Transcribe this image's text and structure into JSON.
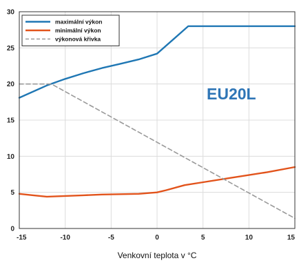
{
  "chart_data": {
    "type": "line",
    "title": "",
    "xlabel": "Venkovní teplota v °C",
    "ylabel": "",
    "xlim": [
      -15,
      15
    ],
    "ylim": [
      0,
      30
    ],
    "xticks": [
      -15,
      -10,
      -5,
      0,
      5,
      10,
      15
    ],
    "yticks": [
      0,
      5,
      10,
      15,
      20,
      25,
      30
    ],
    "xtick_labels": [
      "-15",
      "-10",
      "-5",
      "0",
      "5",
      "10",
      "15"
    ],
    "ytick_labels": [
      "0",
      "5",
      "10",
      "15",
      "20",
      "25",
      "30"
    ],
    "grid": true,
    "legend_position": "top-left",
    "annotation": "EU20L",
    "annotation_color": "#2e75b6",
    "series": [
      {
        "name": "maximální výkon",
        "color": "#1f77b4",
        "style": "solid",
        "x": [
          -15,
          -12,
          -10,
          -8,
          -6,
          -4,
          -2,
          0,
          3.4,
          15
        ],
        "y": [
          18.1,
          19.8,
          20.7,
          21.5,
          22.2,
          22.8,
          23.4,
          24.2,
          28.0,
          28.0
        ]
      },
      {
        "name": "minimální výkon",
        "color": "#e2531b",
        "style": "solid",
        "x": [
          -15,
          -13.5,
          -12,
          -10,
          -8,
          -6,
          -4,
          -2,
          0,
          1,
          3,
          5,
          8,
          12,
          15
        ],
        "y": [
          4.8,
          4.6,
          4.4,
          4.5,
          4.6,
          4.7,
          4.75,
          4.8,
          5.0,
          5.3,
          6.0,
          6.4,
          7.0,
          7.8,
          8.5
        ]
      },
      {
        "name": "výkonová křivka",
        "color": "#999999",
        "style": "dashed",
        "x": [
          -15,
          -11.5,
          15
        ],
        "y": [
          20.0,
          20.0,
          1.4
        ]
      }
    ]
  }
}
